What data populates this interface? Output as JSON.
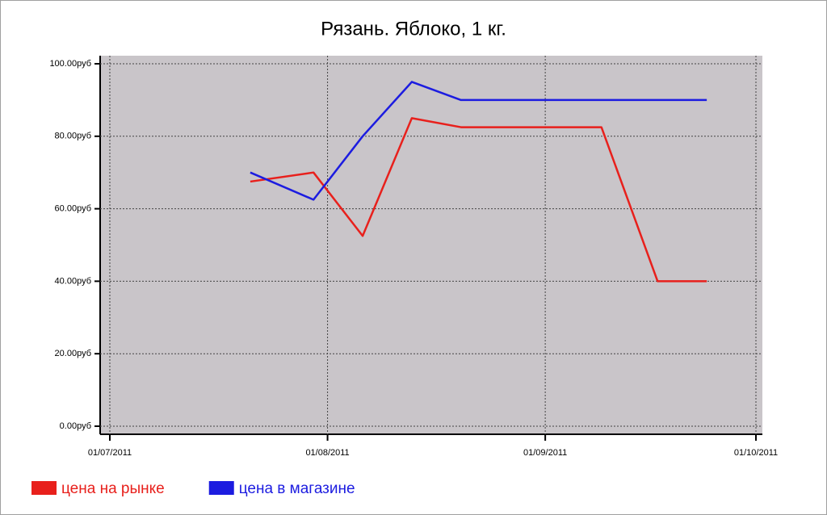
{
  "chart_data": {
    "type": "line",
    "title": "Рязань. Яблоко, 1 кг.",
    "x": [
      "2011-07-21",
      "2011-07-30",
      "2011-08-06",
      "2011-08-13",
      "2011-08-20",
      "2011-08-27",
      "2011-09-02",
      "2011-09-09",
      "2011-09-17",
      "2011-09-24"
    ],
    "series": [
      {
        "name": "цена на рынке",
        "color": "#e8201c",
        "values": [
          67.5,
          70,
          52.5,
          85,
          82.5,
          82.5,
          82.5,
          82.5,
          40,
          40
        ]
      },
      {
        "name": "цена в магазине",
        "color": "#1c1ce0",
        "values": [
          70,
          62.5,
          80,
          95,
          90,
          90,
          90,
          90,
          90,
          90
        ]
      }
    ],
    "xlim": [
      "2011-07-01",
      "2011-10-01"
    ],
    "xticks": [
      {
        "value": "2011-07-01",
        "label": "01/07/2011"
      },
      {
        "value": "2011-08-01",
        "label": "01/08/2011"
      },
      {
        "value": "2011-09-01",
        "label": "01/09/2011"
      },
      {
        "value": "2011-10-01",
        "label": "01/10/2011"
      }
    ],
    "ylim": [
      0,
      100
    ],
    "yticks": [
      {
        "value": 0,
        "label": "0.00руб"
      },
      {
        "value": 20,
        "label": "20.00руб"
      },
      {
        "value": 40,
        "label": "40.00руб"
      },
      {
        "value": 60,
        "label": "60.00руб"
      },
      {
        "value": 80,
        "label": "80.00руб"
      },
      {
        "value": 100,
        "label": "100.00руб"
      }
    ],
    "grid": true,
    "legend": "bottom-left"
  }
}
